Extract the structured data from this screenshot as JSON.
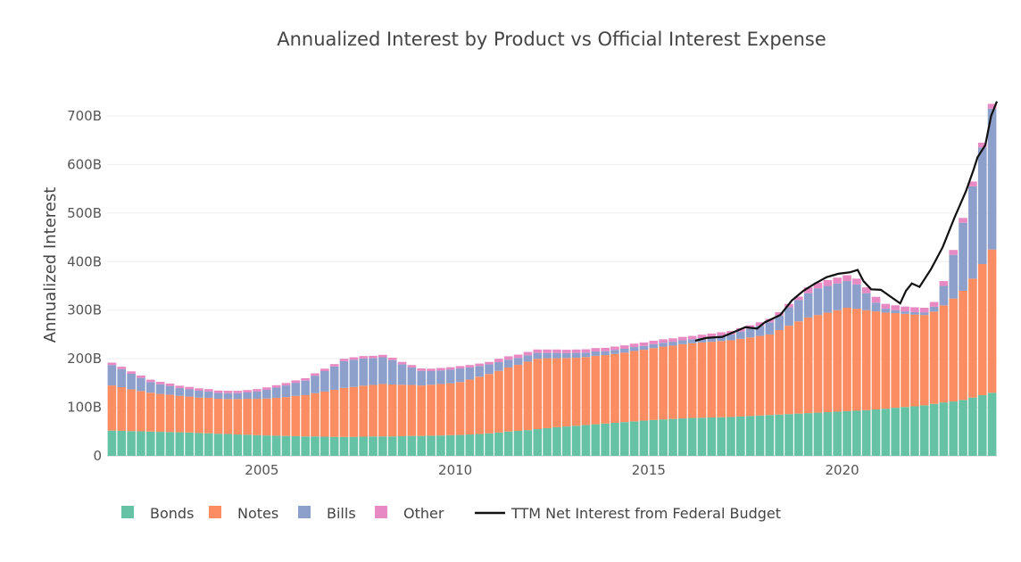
{
  "chart_data": {
    "type": "bar",
    "stacked": true,
    "title": "Annualized Interest by Product vs Official Interest Expense",
    "xlabel": "",
    "ylabel": "Annualized Interest",
    "ylim": [
      0,
      750
    ],
    "yticks": [
      0,
      100,
      200,
      300,
      400,
      500,
      600,
      700
    ],
    "ytick_labels": [
      "0",
      "100B",
      "200B",
      "300B",
      "400B",
      "500B",
      "600B",
      "700B"
    ],
    "xticks": [
      2005,
      2010,
      2015,
      2020
    ],
    "xtick_labels": [
      "2005",
      "2010",
      "2015",
      "2020"
    ],
    "xlim": [
      2001,
      2024
    ],
    "grid": true,
    "legend_position": "bottom",
    "x_start_year": 2001,
    "x_step": "quarter",
    "series": [
      {
        "name": "Bonds",
        "color": "#66c2a5",
        "values": [
          52,
          51.5,
          51,
          50.5,
          50,
          49.5,
          49,
          48.5,
          48,
          47,
          46.5,
          45.5,
          45,
          44,
          43.5,
          42.5,
          42,
          41.5,
          41,
          40.5,
          40,
          40,
          39.5,
          39,
          39,
          39,
          39.5,
          40,
          40,
          40,
          40.5,
          41,
          41,
          41.5,
          42,
          42.5,
          43,
          44,
          45,
          46.5,
          48,
          50,
          51.5,
          53,
          55,
          57,
          59,
          60.5,
          62,
          63.5,
          65,
          66.5,
          68,
          69.5,
          71,
          72.5,
          74,
          75,
          76,
          77,
          78,
          78.5,
          79,
          79.5,
          80,
          81,
          82,
          83,
          84,
          85,
          86,
          87,
          88,
          89,
          90,
          91,
          92,
          93,
          94,
          95.5,
          97,
          99,
          100.5,
          102,
          104,
          107,
          110,
          112,
          115,
          120,
          125,
          130
        ]
      },
      {
        "name": "Notes",
        "color": "#fc8d62",
        "values": [
          93,
          90,
          86,
          83,
          80,
          78,
          77,
          75,
          74,
          73,
          73,
          72,
          72,
          73,
          74,
          75,
          76,
          78,
          80,
          83,
          85,
          89,
          93,
          97,
          101,
          103,
          105,
          106,
          108,
          107,
          106,
          105,
          104,
          105,
          106,
          107,
          109,
          113,
          118,
          122,
          127,
          132,
          136,
          141,
          145,
          144,
          142,
          141,
          140,
          140,
          141,
          141,
          142,
          143,
          145,
          146,
          148,
          150,
          151,
          153,
          154,
          155,
          156,
          157,
          158,
          160,
          162,
          164,
          166,
          174,
          182,
          190,
          197,
          201,
          205,
          209,
          213,
          210,
          206,
          202,
          198,
          195,
          192,
          189,
          186,
          190,
          200,
          212,
          225,
          245,
          270,
          295
        ]
      },
      {
        "name": "Bills",
        "color": "#8da0cb",
        "values": [
          42,
          37,
          32,
          27,
          22,
          20,
          18,
          16,
          15,
          14,
          13,
          12,
          12,
          12,
          13,
          15,
          18,
          21,
          24,
          27,
          30,
          36,
          42,
          48,
          55,
          56,
          56,
          55,
          55,
          50,
          42,
          36,
          30,
          28,
          28,
          28,
          28,
          25,
          22,
          20,
          18,
          16,
          14,
          13,
          12,
          11,
          11,
          10,
          10,
          9,
          9,
          8,
          8,
          8,
          8,
          8,
          8,
          8,
          8,
          8,
          8,
          9,
          10,
          11,
          12,
          15,
          18,
          21,
          25,
          30,
          38,
          44,
          50,
          55,
          55,
          55,
          55,
          50,
          35,
          18,
          8,
          6,
          5,
          5,
          5,
          10,
          40,
          90,
          140,
          190,
          240,
          290
        ]
      },
      {
        "name": "Other",
        "color": "#e78ac3",
        "values": [
          5,
          5,
          5,
          5,
          5,
          5,
          5,
          5,
          5,
          5,
          5,
          5,
          5,
          5,
          5,
          5,
          5,
          5,
          5,
          5,
          5,
          5,
          5,
          5,
          5,
          5,
          5,
          5,
          5,
          5,
          5,
          5,
          5,
          5,
          5,
          5,
          5,
          5,
          5,
          5,
          7,
          7,
          7,
          7,
          7,
          7,
          7,
          7,
          7,
          7,
          7,
          7,
          7,
          7,
          7,
          7,
          7,
          7,
          7,
          7,
          7,
          7,
          7,
          7,
          7,
          7,
          7,
          7,
          7,
          7,
          7,
          7,
          12,
          12,
          12,
          12,
          12,
          12,
          12,
          12,
          10,
          10,
          10,
          10,
          10,
          10,
          10,
          10,
          10,
          10,
          10,
          10
        ]
      }
    ],
    "line": {
      "name": "TTM Net Interest from Federal Budget",
      "color": "#111111",
      "points": [
        [
          2016.2,
          237
        ],
        [
          2016.5,
          243
        ],
        [
          2016.9,
          245
        ],
        [
          2017.2,
          255
        ],
        [
          2017.5,
          265
        ],
        [
          2017.8,
          262
        ],
        [
          2018.0,
          275
        ],
        [
          2018.4,
          290
        ],
        [
          2018.7,
          320
        ],
        [
          2019.0,
          340
        ],
        [
          2019.3,
          355
        ],
        [
          2019.6,
          368
        ],
        [
          2019.9,
          375
        ],
        [
          2020.2,
          378
        ],
        [
          2020.4,
          383
        ],
        [
          2020.55,
          360
        ],
        [
          2020.75,
          343
        ],
        [
          2021.0,
          342
        ],
        [
          2021.25,
          328
        ],
        [
          2021.5,
          314
        ],
        [
          2021.65,
          340
        ],
        [
          2021.8,
          355
        ],
        [
          2022.0,
          348
        ],
        [
          2022.3,
          385
        ],
        [
          2022.6,
          430
        ],
        [
          2022.9,
          490
        ],
        [
          2023.2,
          545
        ],
        [
          2023.4,
          590
        ],
        [
          2023.5,
          615
        ],
        [
          2023.7,
          640
        ],
        [
          2023.85,
          700
        ],
        [
          2024.0,
          730
        ]
      ]
    }
  }
}
